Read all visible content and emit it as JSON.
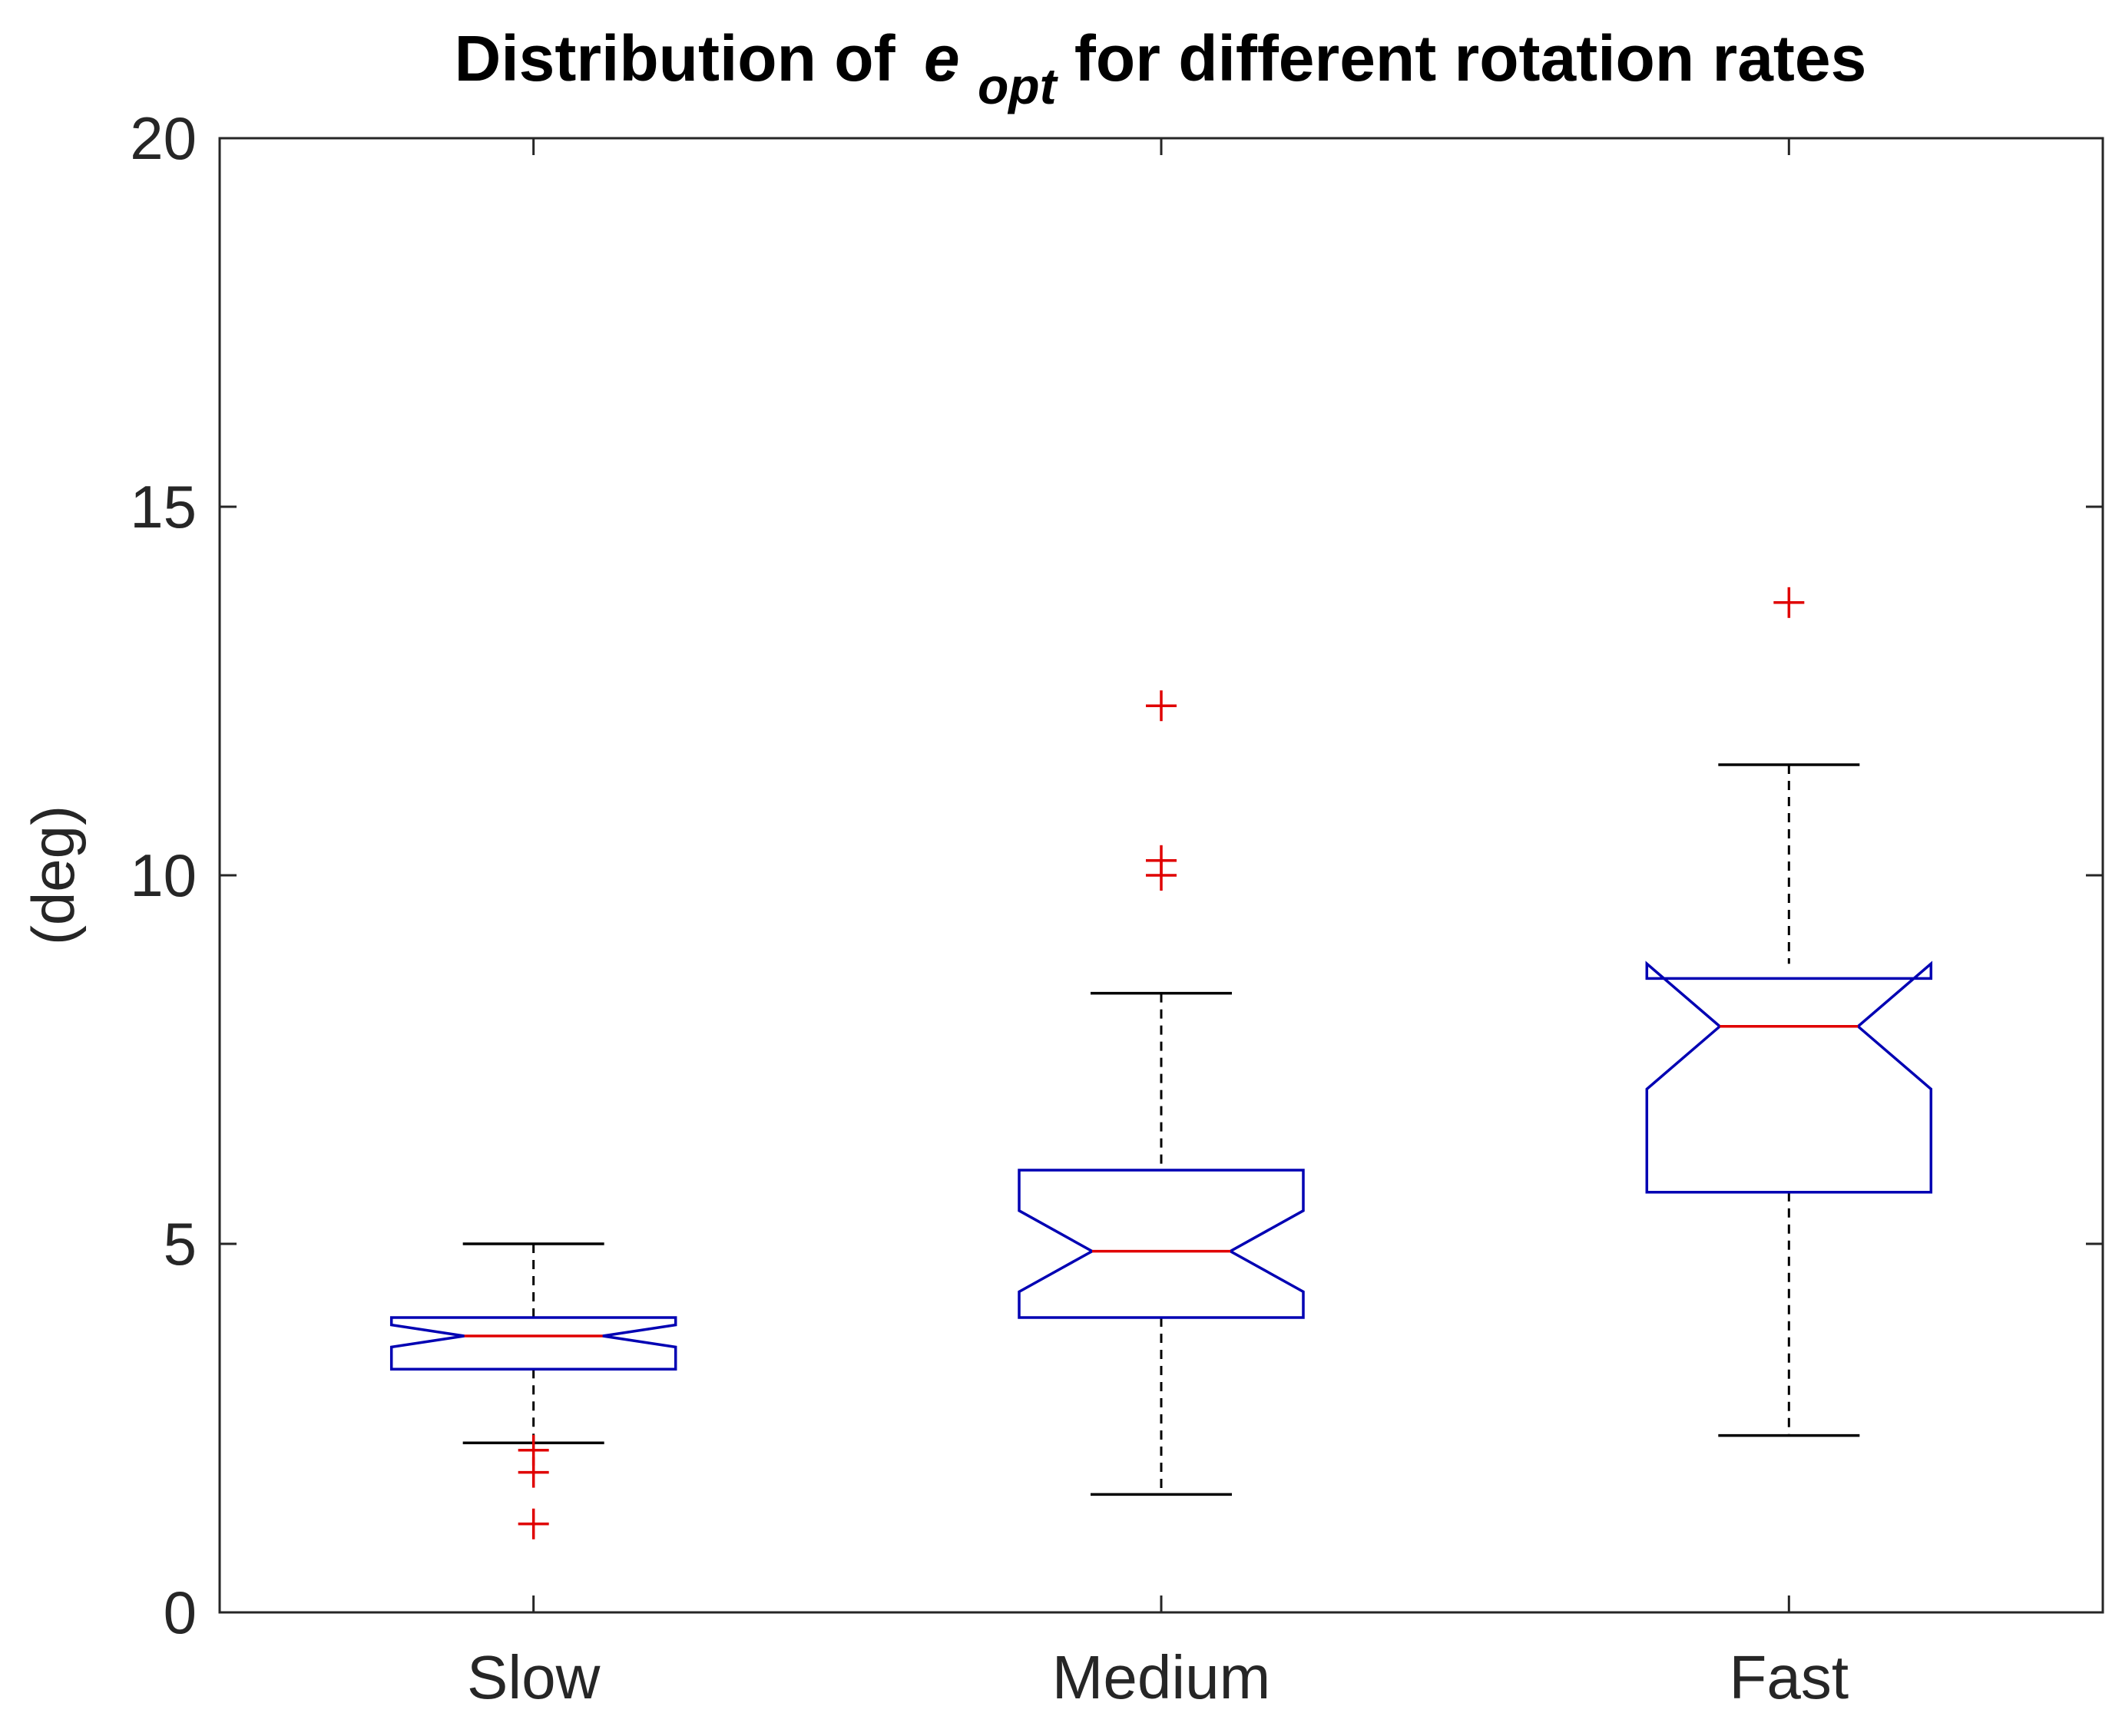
{
  "chart_data": {
    "type": "boxplot",
    "title": {
      "prefix": "Distribution of ",
      "symbol": "e",
      "subscript": "opt",
      "suffix": " for different rotation rates"
    },
    "xlabel": "",
    "ylabel": "(deg)",
    "ylim": [
      0,
      20
    ],
    "yticks": [
      0,
      5,
      10,
      15,
      20
    ],
    "categories": [
      "Slow",
      "Medium",
      "Fast"
    ],
    "notched": true,
    "grid": false,
    "legend": "none",
    "boxes": [
      {
        "category": "Slow",
        "whisker_low": 2.3,
        "q1": 3.3,
        "median": 3.75,
        "q3": 4.0,
        "whisker_high": 5.0,
        "notch_low": 3.6,
        "notch_high": 3.9,
        "outliers": [
          2.2,
          1.9,
          1.2
        ]
      },
      {
        "category": "Medium",
        "whisker_low": 1.6,
        "q1": 4.0,
        "median": 4.9,
        "q3": 6.0,
        "whisker_high": 8.4,
        "notch_low": 4.35,
        "notch_high": 5.45,
        "outliers": [
          10.2,
          10.0,
          12.3
        ]
      },
      {
        "category": "Fast",
        "whisker_low": 2.4,
        "q1": 5.7,
        "median": 7.95,
        "q3": 8.6,
        "whisker_high": 11.5,
        "notch_low": 7.1,
        "notch_high": 8.8,
        "outliers": [
          13.7
        ]
      }
    ],
    "colors": {
      "box": "#0000b3",
      "median": "#e00000",
      "outlier": "#e00000",
      "whisker": "#000000",
      "axis": "#262626"
    }
  }
}
